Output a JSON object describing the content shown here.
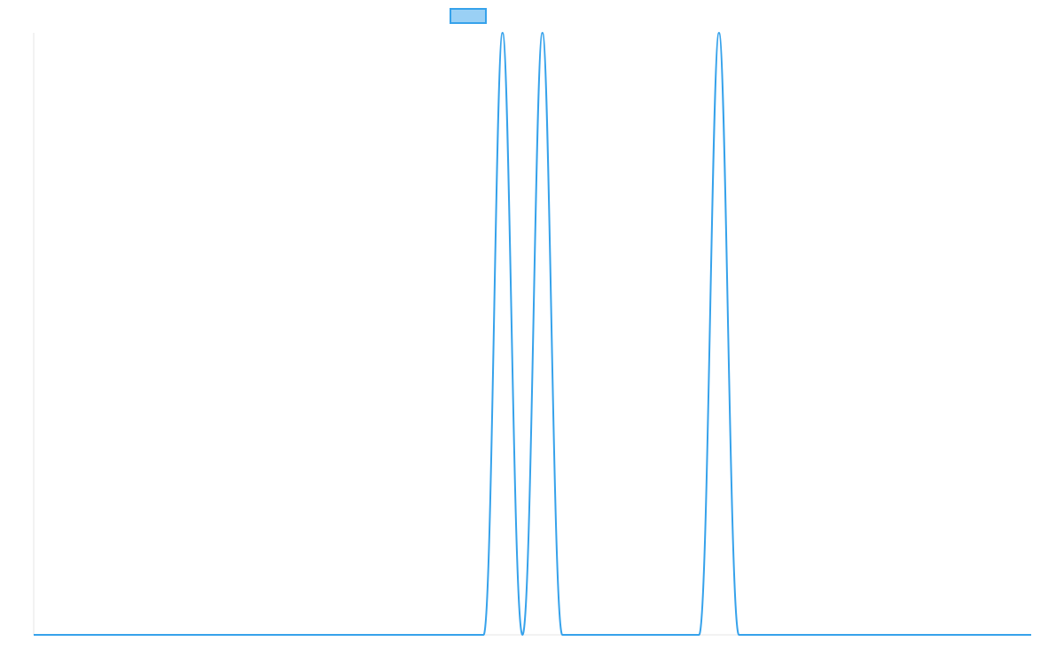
{
  "chart_data": {
    "type": "line",
    "title": "",
    "xlabel": "",
    "ylabel": "",
    "legend": {
      "placement": "top-center",
      "entries": [
        {
          "name": "",
          "color": "#36a2eb",
          "fill": "#9ad0f5"
        }
      ]
    },
    "grid": false,
    "xlim": [
      0,
      1
    ],
    "ylim": [
      0,
      1
    ],
    "series": [
      {
        "name": "",
        "color": "#36a2eb",
        "x": [
          0.0,
          0.451,
          0.47,
          0.49,
          0.5,
          0.51,
          0.53,
          0.55,
          0.667,
          0.687,
          0.707,
          0.727,
          1.0
        ],
        "y": [
          0,
          0,
          1,
          0,
          0.5,
          1,
          0,
          0,
          0,
          1,
          0,
          0,
          0
        ],
        "points": [
          [
            0.0,
            0
          ],
          [
            0.451,
            0
          ],
          [
            0.47,
            1
          ],
          [
            0.49,
            0
          ],
          [
            0.51,
            1
          ],
          [
            0.53,
            0
          ],
          [
            0.667,
            0
          ],
          [
            0.687,
            1
          ],
          [
            0.707,
            0
          ],
          [
            1.0,
            0
          ]
        ]
      }
    ]
  }
}
